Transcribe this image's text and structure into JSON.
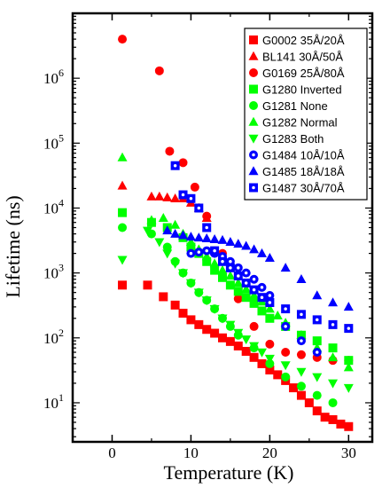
{
  "chart_data": {
    "type": "scatter",
    "xlabel": "Temperature (K)",
    "ylabel": "Lifetime (ns)",
    "xlim": [
      -5,
      33
    ],
    "ylim": [
      2.5,
      10000000
    ],
    "yscale": "log",
    "xticks": [
      0,
      10,
      20,
      30
    ],
    "xtick_labels": [
      "0",
      "10",
      "20",
      "30"
    ],
    "yticks": [
      10,
      100,
      1000,
      10000,
      100000,
      1000000
    ],
    "ytick_labels": [
      {
        "base": "10",
        "exp": "1"
      },
      {
        "base": "10",
        "exp": "2"
      },
      {
        "base": "10",
        "exp": "3"
      },
      {
        "base": "10",
        "exp": "4"
      },
      {
        "base": "10",
        "exp": "5"
      },
      {
        "base": "10",
        "exp": "6"
      }
    ],
    "legend_position": "top-right",
    "series": [
      {
        "name": "G0002 35Å/20Å",
        "marker": "square",
        "color": "#ff0000",
        "marker_note": "",
        "x": [
          1.3,
          4.5,
          6.5,
          8.0,
          9.0,
          10.0,
          11.0,
          12.0,
          13.0,
          14.0,
          15.0,
          16.0,
          17.0,
          18.0,
          19.0,
          20.0,
          21.0,
          22.0,
          23.0,
          24.0,
          25.0,
          26.0,
          27.0,
          28.0,
          29.0,
          30.0
        ],
        "y": [
          650,
          650,
          430,
          320,
          240,
          190,
          160,
          135,
          118,
          100,
          88,
          75,
          62,
          50,
          40,
          32,
          27,
          22,
          17,
          13,
          10,
          7.5,
          6,
          5.5,
          4.7,
          4.3
        ]
      },
      {
        "name": "BL141 30Å/50Å",
        "marker": "triangle-up",
        "color": "#ff0000",
        "marker_note": "",
        "x": [
          1.3,
          5.0,
          6.0,
          7.0,
          8.0,
          9.0,
          10.0,
          11.0,
          12.0
        ],
        "y": [
          22000,
          15000,
          15000,
          14500,
          14000,
          14000,
          12000,
          10000,
          7000
        ]
      },
      {
        "name": "G0169 25Å/80Å",
        "marker": "circle",
        "color": "#ff0000",
        "marker_note": "",
        "x": [
          1.3,
          6.0,
          7.3,
          9.0,
          10.5,
          12.0,
          14.0,
          16.0,
          18.0,
          20.0,
          22.0,
          24.0,
          26.0,
          28.0,
          30.0
        ],
        "y": [
          4000000,
          1300000,
          75000,
          50000,
          21000,
          7500,
          2000,
          400,
          150,
          80,
          60,
          55,
          50,
          45,
          45
        ]
      },
      {
        "name": "G1280 Inverted",
        "marker": "square",
        "color": "#00ff00",
        "marker_note": "",
        "x": [
          1.3,
          5.0,
          7.0,
          9.0,
          10.0,
          11.0,
          12.0,
          13.0,
          14.0,
          15.0,
          16.0,
          17.0,
          18.0,
          19.0,
          20.0,
          22.0,
          24.0,
          26.0,
          28.0,
          30.0
        ],
        "y": [
          8500,
          6000,
          5000,
          3500,
          2500,
          2000,
          1500,
          1100,
          850,
          650,
          520,
          420,
          340,
          260,
          200,
          150,
          110,
          90,
          70,
          45
        ]
      },
      {
        "name": "G1281 None",
        "marker": "circle",
        "color": "#00ff00",
        "marker_note": "",
        "x": [
          1.3,
          5.0,
          7.0,
          8.0,
          9.0,
          10.0,
          11.0,
          12.0,
          13.0,
          14.0,
          15.0,
          16.0,
          18.0,
          20.0,
          22.0,
          24.0,
          26.0,
          28.0
        ],
        "y": [
          5000,
          4000,
          2500,
          1500,
          1000,
          700,
          500,
          380,
          280,
          200,
          150,
          110,
          70,
          40,
          25,
          18,
          13,
          10
        ]
      },
      {
        "name": "G1282 Normal",
        "marker": "triangle-up",
        "color": "#00ff00",
        "marker_note": "",
        "x": [
          1.3,
          5.0,
          6.5,
          8.0,
          9.0,
          10.0,
          11.0,
          12.0,
          13.0,
          14.0,
          15.0,
          16.0,
          17.0,
          18.0,
          19.0,
          20.0,
          21.0,
          22.0,
          24.0,
          26.0,
          28.0,
          30.0
        ],
        "y": [
          60000,
          6500,
          7000,
          5500,
          4000,
          3000,
          2300,
          1800,
          1400,
          1100,
          900,
          700,
          560,
          450,
          360,
          280,
          220,
          170,
          110,
          70,
          50,
          35
        ]
      },
      {
        "name": "G1283 Both",
        "marker": "triangle-down",
        "color": "#00ff00",
        "marker_note": "",
        "x": [
          1.3,
          4.5,
          6.0,
          7.0,
          8.0,
          9.0,
          10.0,
          11.0,
          12.0,
          13.0,
          14.0,
          15.0,
          16.0,
          17.0,
          18.0,
          19.0,
          20.0,
          22.0,
          24.0,
          26.0,
          28.0,
          30.0
        ],
        "y": [
          1600,
          4500,
          3000,
          2000,
          1400,
          1000,
          700,
          500,
          380,
          280,
          200,
          160,
          120,
          95,
          75,
          60,
          48,
          38,
          30,
          25,
          20,
          17
        ]
      },
      {
        "name": "G1484 10Å/10Å",
        "marker": "circle",
        "color": "#0000ff",
        "marker_note": "dot",
        "x": [
          10.0,
          11.0,
          12.0,
          13.0,
          14.0,
          15.0,
          16.0,
          17.0,
          18.0,
          19.0,
          20.0,
          22.0,
          24.0,
          26.0
        ],
        "y": [
          2000,
          2100,
          2200,
          2000,
          1800,
          1500,
          1200,
          1000,
          800,
          600,
          450,
          150,
          90,
          60
        ]
      },
      {
        "name": "G1485 18Å/18Å",
        "marker": "triangle-up",
        "color": "#0000ff",
        "marker_note": "",
        "x": [
          7.0,
          8.0,
          9.0,
          10.0,
          11.0,
          12.0,
          13.0,
          14.0,
          15.0,
          16.0,
          17.0,
          18.0,
          19.0,
          20.0,
          22.0,
          24.0,
          26.0,
          28.0,
          30.0
        ],
        "y": [
          4500,
          4000,
          3800,
          3600,
          3500,
          3400,
          3300,
          3200,
          3000,
          2800,
          2600,
          2300,
          2000,
          1700,
          1200,
          800,
          450,
          350,
          300
        ]
      },
      {
        "name": "G1487 30Å/70Å",
        "marker": "square",
        "color": "#0000ff",
        "marker_note": "dot",
        "x": [
          8.0,
          9.0,
          10.0,
          11.0,
          12.0,
          13.0,
          14.0,
          15.0,
          16.0,
          17.0,
          18.0,
          19.0,
          20.0,
          22.0,
          24.0,
          26.0,
          28.0,
          30.0
        ],
        "y": [
          45000,
          16000,
          14000,
          10000,
          5000,
          2200,
          1500,
          1200,
          900,
          700,
          550,
          420,
          350,
          280,
          230,
          190,
          160,
          140
        ]
      }
    ]
  }
}
